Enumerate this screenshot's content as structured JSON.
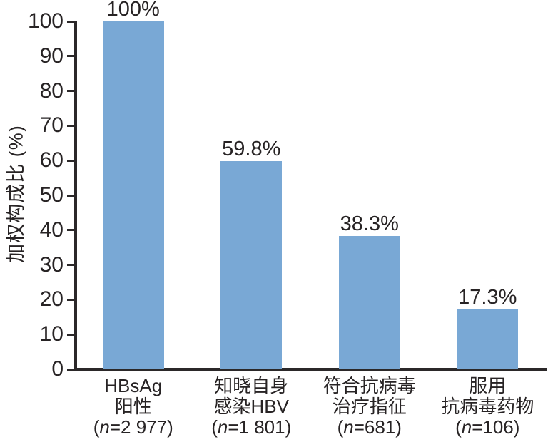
{
  "chart_data": {
    "type": "bar",
    "title": "",
    "xlabel": "",
    "ylabel": "加权构成比 (%)",
    "ylim": [
      0,
      100
    ],
    "yticks": [
      0,
      10,
      20,
      30,
      40,
      50,
      60,
      70,
      80,
      90,
      100
    ],
    "grid": false,
    "legend": "none",
    "bar_color": "#79a8d5",
    "axis_color": "#2b2829",
    "text_color": "#272324",
    "n_symbol": "n",
    "categories": [
      {
        "lines": [
          "HBsAg",
          "阳性"
        ],
        "n": "2 977"
      },
      {
        "lines": [
          "知晓自身",
          "感染HBV"
        ],
        "n": "1 801"
      },
      {
        "lines": [
          "符合抗病毒",
          "治疗指征"
        ],
        "n": "681"
      },
      {
        "lines": [
          "服用",
          "抗病毒药物"
        ],
        "n": "106"
      }
    ],
    "values": [
      100,
      59.8,
      38.3,
      17.3
    ],
    "value_labels": [
      "100%",
      "59.8%",
      "38.3%",
      "17.3%"
    ]
  }
}
